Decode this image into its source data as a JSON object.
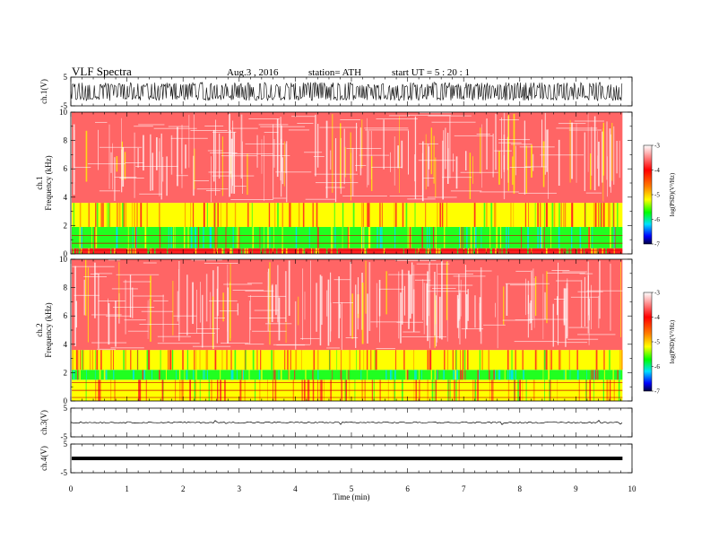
{
  "header": {
    "title": "VLF  Spectra",
    "date": "Aug.3  , 2016",
    "station": "station= ATH",
    "start": "start  UT  =    5  : 20 : 1"
  },
  "colors": {
    "background": "#ffffff",
    "spec_red": "#ff2020",
    "spec_yellow": "#ffff00",
    "spec_green": "#20ff20",
    "spec_cyan": "#00e0ff",
    "waveform": "#000000"
  },
  "chart_data": [
    {
      "type": "line",
      "panel": "ch1-waveform",
      "ylabel": "ch.1(V)",
      "ylim": [
        -5,
        5
      ],
      "yticks": [
        "5",
        "-5"
      ],
      "x": [
        0,
        9.83
      ],
      "amplitude_envelope": [
        -3.2,
        3.2
      ]
    },
    {
      "type": "heatmap",
      "panel": "ch1-spectrogram",
      "ylabel": "ch.1\nFrequency  (kHz)",
      "ylim": [
        0,
        10
      ],
      "yticks": [
        "0",
        "2",
        "4",
        "6",
        "8",
        "10"
      ],
      "bands": [
        {
          "fmin": 0.0,
          "fmax": 0.4,
          "level": "red"
        },
        {
          "fmin": 0.4,
          "fmax": 1.9,
          "level": "green"
        },
        {
          "fmin": 1.9,
          "fmax": 3.6,
          "level": "yellow"
        },
        {
          "fmin": 3.6,
          "fmax": 10.0,
          "level": "red-sparse"
        }
      ],
      "colorbar": {
        "label": "log(PSD)(V²/Hz)",
        "ticks": [
          "-3",
          "-4",
          "-5",
          "-6",
          "-7"
        ],
        "range": [
          -7,
          -3
        ]
      }
    },
    {
      "type": "heatmap",
      "panel": "ch2-spectrogram",
      "ylabel": "ch.2\nFrequency  (kHz)",
      "ylim": [
        0,
        10
      ],
      "yticks": [
        "0",
        "2",
        "4",
        "6",
        "8",
        "10"
      ],
      "bands": [
        {
          "fmin": 0.0,
          "fmax": 1.5,
          "level": "yellow"
        },
        {
          "fmin": 1.5,
          "fmax": 2.2,
          "level": "green"
        },
        {
          "fmin": 2.2,
          "fmax": 3.6,
          "level": "yellow"
        },
        {
          "fmin": 3.6,
          "fmax": 10.0,
          "level": "red-sparse"
        }
      ],
      "colorbar": {
        "label": "log(PSD)(V²/Hz)",
        "ticks": [
          "-3",
          "-4",
          "-5",
          "-6",
          "-7"
        ],
        "range": [
          -7,
          -3
        ]
      }
    },
    {
      "type": "line",
      "panel": "ch3-waveform",
      "ylabel": "ch.3(V)",
      "ylim": [
        -5,
        5
      ],
      "yticks": [
        "5",
        "-5"
      ],
      "x": [
        0,
        9.83
      ],
      "baseline": 0
    },
    {
      "type": "line",
      "panel": "ch4-waveform",
      "ylabel": "ch.4(V)",
      "ylim": [
        -5,
        5
      ],
      "yticks": [
        "5",
        "-5"
      ],
      "x": [
        0,
        9.83
      ],
      "baseline": 0
    }
  ],
  "xaxis": {
    "label": "Time  (min)",
    "ticks": [
      "0",
      "1",
      "2",
      "3",
      "4",
      "5",
      "6",
      "7",
      "8",
      "9",
      "10"
    ],
    "xlim": [
      0,
      10
    ],
    "data_end": 9.83
  }
}
